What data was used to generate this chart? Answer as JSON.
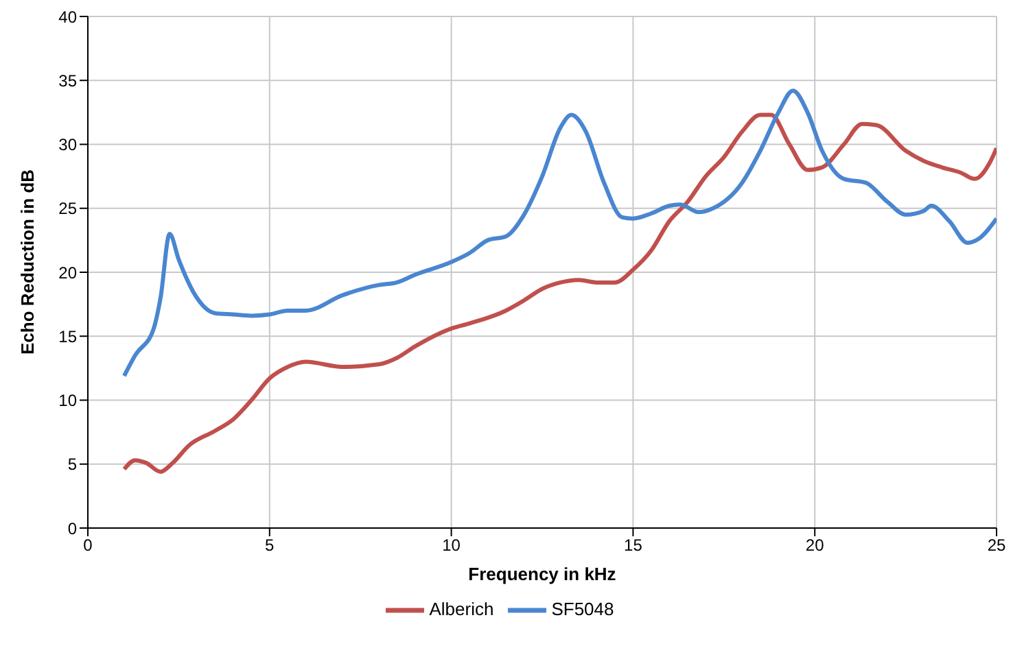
{
  "chart_data": {
    "type": "line",
    "xlabel": "Frequency in kHz",
    "ylabel": "Echo Reduction in dB",
    "xlim": [
      0,
      25
    ],
    "xticks": [
      0,
      5,
      10,
      15,
      20,
      25
    ],
    "ylim": [
      0,
      40
    ],
    "yticks": [
      0,
      5,
      10,
      15,
      20,
      25,
      30,
      35,
      40
    ],
    "grid": true,
    "legend": "bottom",
    "marker": "none",
    "line_style": "solid",
    "series": [
      {
        "name": "Alberich",
        "color": "#c0504d",
        "x": [
          1,
          1.3,
          1.6,
          2,
          2.3,
          2.8,
          3.5,
          4,
          4.5,
          5,
          5.5,
          6,
          7,
          8,
          8.5,
          9,
          10,
          10.5,
          11.5,
          12,
          12.5,
          13,
          13.5,
          14,
          14.5,
          15,
          15.5,
          16,
          16.5,
          17,
          17.5,
          18,
          18.5,
          18.8,
          19.3,
          19.8,
          20.2,
          20.8,
          21.3,
          21.7,
          22.5,
          23,
          23.5,
          24,
          24.4,
          24.8,
          25
        ],
        "values": [
          4.6,
          5.3,
          5.1,
          4.4,
          5,
          6.5,
          7.6,
          8.5,
          10,
          11.7,
          12.6,
          13,
          12.6,
          12.8,
          13.3,
          14.2,
          15.6,
          16,
          17,
          17.8,
          18.7,
          19.2,
          19.4,
          19.2,
          19.2,
          20.2,
          21.7,
          24,
          25.5,
          27.5,
          29,
          31,
          32.3,
          32.3,
          30,
          28,
          28.2,
          30,
          31.6,
          31.5,
          29.5,
          28.7,
          28.2,
          27.8,
          27.3,
          28.5,
          29.7
        ]
      },
      {
        "name": "SF5048",
        "color": "#4a86d0",
        "x": [
          1,
          1.3,
          1.8,
          2,
          2.25,
          2.5,
          3,
          3.5,
          4,
          4.5,
          5,
          5.5,
          6,
          7,
          8,
          8.5,
          9,
          10,
          10.5,
          11,
          11.5,
          12,
          12.5,
          13,
          13.3,
          13.7,
          14.2,
          14.7,
          15,
          15.5,
          16,
          16.3,
          16.8,
          17.2,
          18,
          18.5,
          19,
          19.4,
          19.8,
          20.2,
          20.8,
          21.4,
          22,
          22.5,
          23,
          23.2,
          23.7,
          24.2,
          24.5,
          25
        ],
        "values": [
          11.9,
          13.5,
          15.5,
          18,
          23,
          21,
          18,
          16.8,
          16.7,
          16.6,
          16.7,
          17,
          17,
          18.2,
          19,
          19.2,
          19.8,
          20.8,
          21.5,
          22.5,
          22.8,
          24.5,
          27.5,
          31.3,
          32.3,
          31,
          27,
          24.3,
          24.2,
          24.6,
          25.2,
          25.3,
          24.7,
          25,
          27,
          29.5,
          32.5,
          34.2,
          32.5,
          29.5,
          27.3,
          27,
          25.5,
          24.5,
          24.8,
          25.2,
          24,
          22.3,
          22.6,
          24.2
        ]
      }
    ]
  }
}
